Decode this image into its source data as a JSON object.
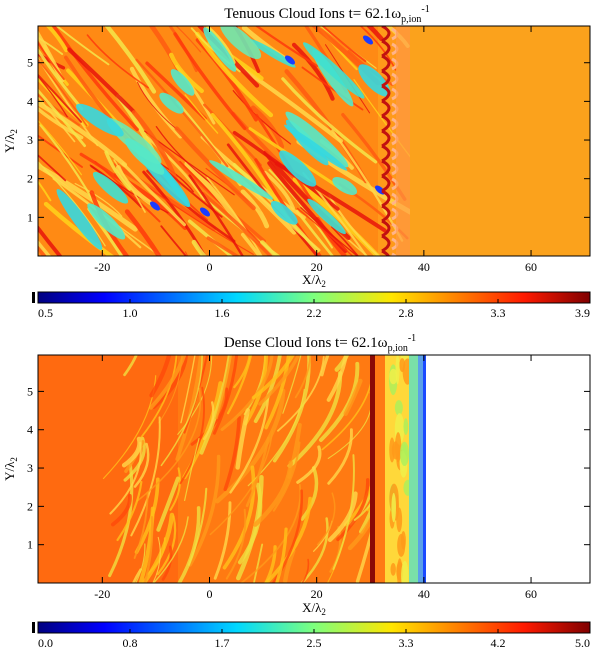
{
  "chart_data": [
    {
      "type": "heatmap",
      "title_main": "Tenuous Cloud Ions t=  62.1ω",
      "title_sub": "p,ion",
      "title_sup": "-1",
      "xlabel_main": "X/λ",
      "xlabel_sub": "2",
      "ylabel_main": "Y/λ",
      "ylabel_sub": "2",
      "xlim": [
        -32,
        71
      ],
      "ylim": [
        0,
        5.95
      ],
      "xticks": [
        -20,
        0,
        20,
        40,
        60
      ],
      "yticks": [
        1,
        2,
        3,
        4,
        5
      ],
      "colorbar": {
        "range": [
          0.5,
          3.9
        ],
        "ticks": [
          "0.5",
          "1.0",
          "1.6",
          "2.2",
          "2.8",
          "3.3",
          "3.9"
        ]
      },
      "regions": [
        {
          "x_range": [
            -32,
            33
          ],
          "description": "filamentary"
        },
        {
          "x_range": [
            33,
            37
          ],
          "description": "shock front"
        },
        {
          "x_range": [
            37,
            71
          ],
          "description": "uniform"
        }
      ]
    },
    {
      "type": "heatmap",
      "title_main": "Dense Cloud Ions t=  62.1ω",
      "title_sub": "p,ion",
      "title_sup": "-1",
      "xlabel_main": "X/λ",
      "xlabel_sub": "2",
      "ylabel_main": "Y/λ",
      "ylabel_sub": "2",
      "xlim": [
        -32,
        71
      ],
      "ylim": [
        0,
        5.95
      ],
      "xticks": [
        -20,
        0,
        20,
        40,
        60
      ],
      "yticks": [
        1,
        2,
        3,
        4,
        5
      ],
      "colorbar": {
        "range": [
          0.0,
          5.0
        ],
        "ticks": [
          "0.0",
          "0.8",
          "1.7",
          "2.5",
          "3.3",
          "4.2",
          "5.0"
        ]
      },
      "regions": [
        {
          "x_range": [
            -32,
            30
          ],
          "description": "filamentary"
        },
        {
          "x_range": [
            30,
            31
          ],
          "description": "dense layer"
        },
        {
          "x_range": [
            31,
            40
          ],
          "description": "compressed layer"
        },
        {
          "x_range": [
            40,
            71
          ],
          "description": "empty"
        }
      ]
    }
  ]
}
